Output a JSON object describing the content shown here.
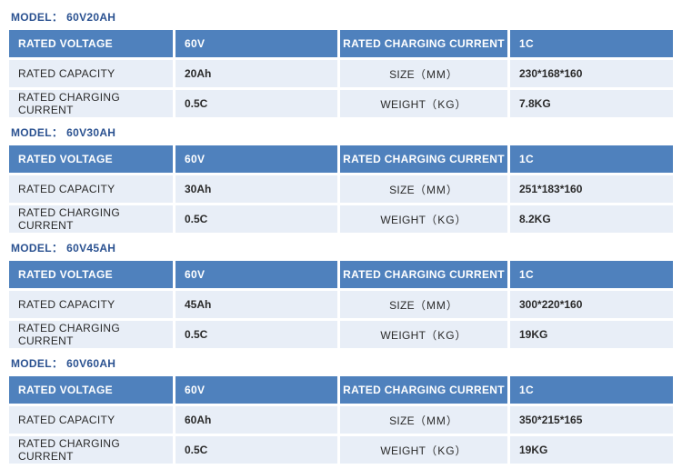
{
  "labels": {
    "model": "MODEL：",
    "rated_voltage": "RATED VOLTAGE",
    "rated_charging_current": "RATED CHARGING CURRENT",
    "rated_capacity": "RATED CAPACITY",
    "size": "SIZE",
    "size_unit": "（MM）",
    "weight": "WEIGHT",
    "weight_unit": "（KG）"
  },
  "colors": {
    "header_bg": "#4f81bd",
    "header_text": "#ffffff",
    "cell_bg": "#e8eef7",
    "cell_text": "#2a2a2a",
    "model_text": "#2b5291"
  },
  "models": [
    {
      "name": "60V20AH",
      "voltage": "60V",
      "charging_current_hdr": "1C",
      "capacity": "20Ah",
      "size": "230*168*160",
      "charging_current": "0.5C",
      "weight": "7.8KG"
    },
    {
      "name": "60V30AH",
      "voltage": "60V",
      "charging_current_hdr": "1C",
      "capacity": "30Ah",
      "size": "251*183*160",
      "charging_current": "0.5C",
      "weight": "8.2KG"
    },
    {
      "name": "60V45AH",
      "voltage": "60V",
      "charging_current_hdr": "1C",
      "capacity": "45Ah",
      "size": "300*220*160",
      "charging_current": "0.5C",
      "weight": "19KG"
    },
    {
      "name": "60V60AH",
      "voltage": "60V",
      "charging_current_hdr": "1C",
      "capacity": "60Ah",
      "size": "350*215*165",
      "charging_current": "0.5C",
      "weight": "19KG"
    }
  ]
}
